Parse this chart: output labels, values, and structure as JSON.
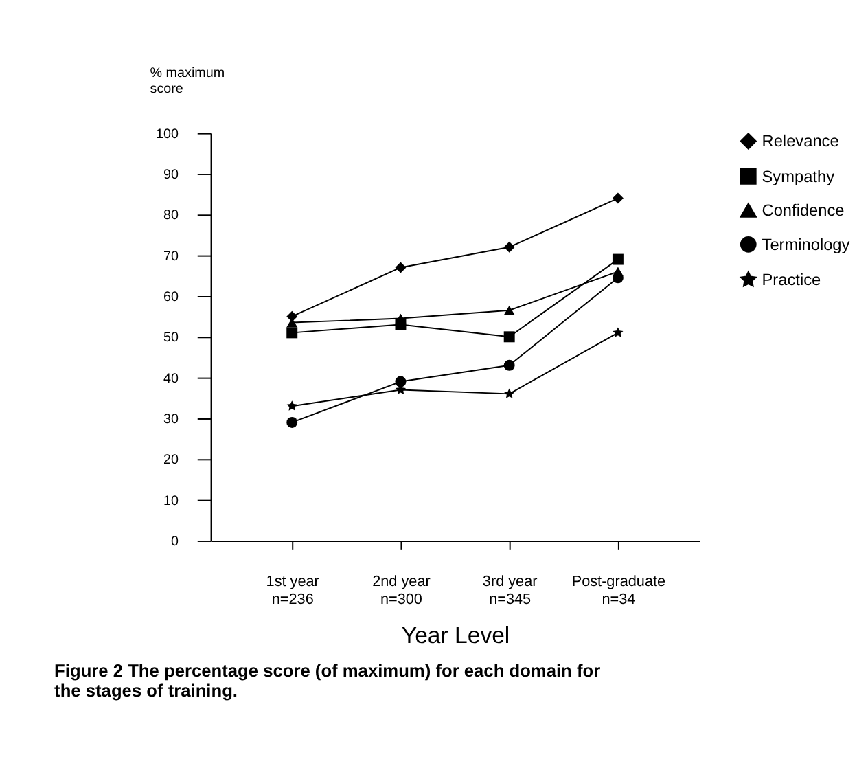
{
  "chart_data": {
    "type": "line",
    "ylabel": "% maximum score",
    "xlabel": "Year Level",
    "categories": [
      "1st year\nn=236",
      "2nd year\nn=300",
      "3rd year\nn=345",
      "Post-graduate\nn=34"
    ],
    "series": [
      {
        "name": "Relevance",
        "color": "#000000",
        "marker": "diamond",
        "values": [
          55,
          67,
          72,
          84
        ]
      },
      {
        "name": "Sympathy",
        "color": "#000000",
        "marker": "square",
        "values": [
          51,
          53,
          50,
          69
        ]
      },
      {
        "name": "Confidence",
        "color": "#000000",
        "marker": "triangle",
        "values": [
          53.5,
          54.5,
          56.5,
          66
        ]
      },
      {
        "name": "Terminology",
        "color": "#000000",
        "marker": "circle",
        "values": [
          29,
          39,
          43,
          64.5
        ]
      },
      {
        "name": "Practice",
        "color": "#000000",
        "marker": "star",
        "values": [
          33,
          37,
          36,
          51
        ]
      }
    ],
    "ylim": [
      0,
      100
    ],
    "yticks": [
      0,
      10,
      20,
      30,
      40,
      50,
      60,
      70,
      80,
      90,
      100
    ],
    "grid": false,
    "legend": "right",
    "line_style": "solid",
    "annotations": [
      "Figure 2 The percentage score (of maximum) for each domain for the stages of training."
    ]
  }
}
